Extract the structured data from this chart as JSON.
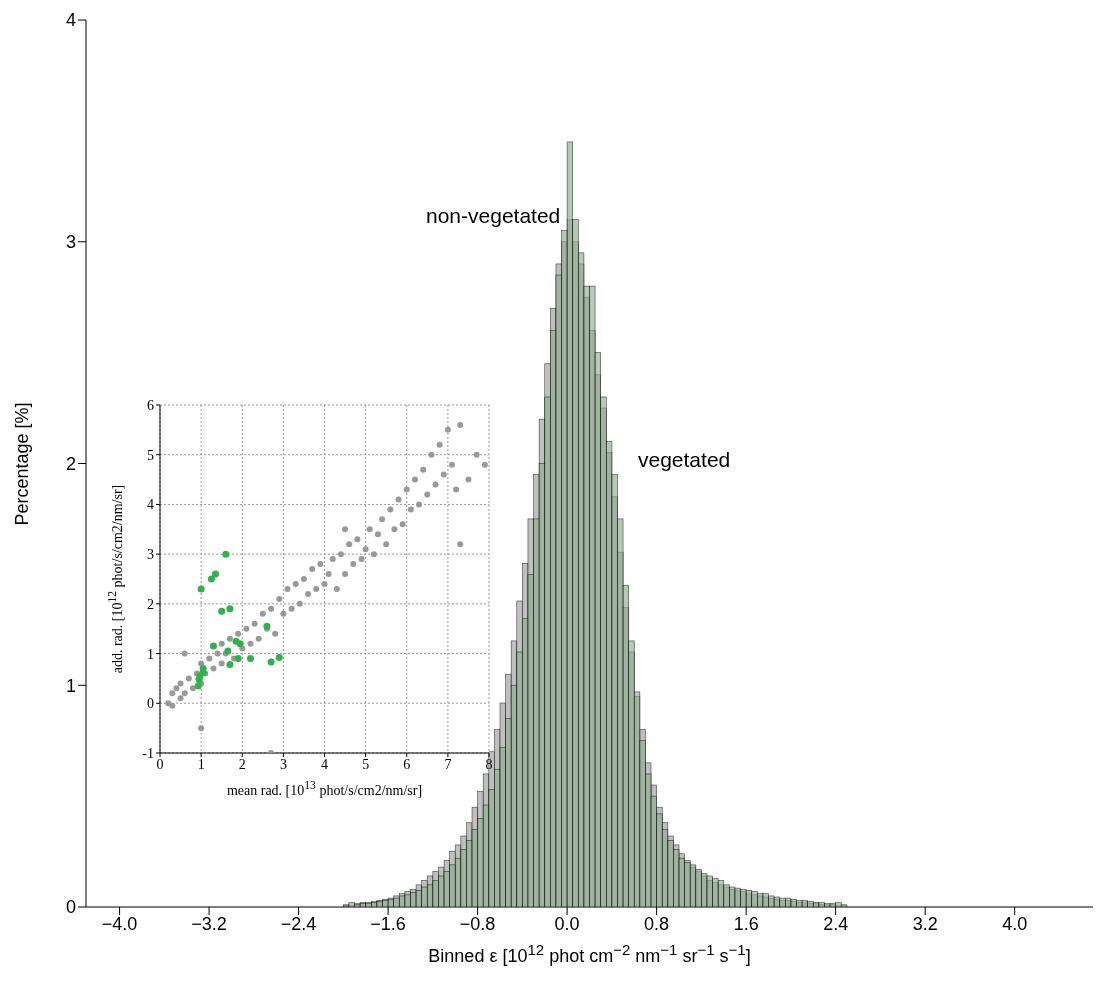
{
  "chart_data": [
    {
      "type": "histogram",
      "xlabel": "Binned ε [10$^{12}$ phot cm$^{−2}$ nm$^{−1}$ sr$^{−1}$ s$^{−1}$]",
      "ylabel": "Percentage [%]",
      "bins": [
        -2.0,
        -1.95,
        -1.9,
        -1.85,
        -1.8,
        -1.75,
        -1.7,
        -1.65,
        -1.6,
        -1.55,
        -1.5,
        -1.45,
        -1.4,
        -1.35,
        -1.3,
        -1.25,
        -1.2,
        -1.15,
        -1.1,
        -1.05,
        -1.0,
        -0.95,
        -0.9,
        -0.85,
        -0.8,
        -0.75,
        -0.7,
        -0.65,
        -0.6,
        -0.55,
        -0.5,
        -0.45,
        -0.4,
        -0.35,
        -0.3,
        -0.25,
        -0.2,
        -0.15,
        -0.1,
        -0.05,
        0.0,
        0.05,
        0.1,
        0.15,
        0.2,
        0.25,
        0.3,
        0.35,
        0.4,
        0.45,
        0.5,
        0.55,
        0.6,
        0.65,
        0.7,
        0.75,
        0.8,
        0.85,
        0.9,
        0.95,
        1.0,
        1.05,
        1.1,
        1.15,
        1.2,
        1.25,
        1.3,
        1.35,
        1.4,
        1.45,
        1.5,
        1.55,
        1.6,
        1.65,
        1.7,
        1.75,
        1.8,
        1.85,
        1.9,
        1.95,
        2.0,
        2.05,
        2.1,
        2.15,
        2.2,
        2.25,
        2.3,
        2.35,
        2.4,
        2.45,
        2.5
      ],
      "series": [
        {
          "name": "non-vegetated",
          "color": "#a9a9a9",
          "values": [
            0.01,
            0.005,
            0.015,
            0.02,
            0.02,
            0.025,
            0.03,
            0.035,
            0.04,
            0.05,
            0.06,
            0.07,
            0.08,
            0.1,
            0.12,
            0.14,
            0.16,
            0.18,
            0.21,
            0.25,
            0.28,
            0.32,
            0.38,
            0.45,
            0.52,
            0.6,
            0.7,
            0.8,
            0.92,
            1.05,
            1.2,
            1.38,
            1.55,
            1.75,
            1.95,
            2.2,
            2.45,
            2.7,
            2.9,
            3.0,
            3.1,
            3.0,
            2.9,
            2.75,
            2.6,
            2.4,
            2.25,
            2.05,
            1.85,
            1.6,
            1.35,
            1.15,
            0.95,
            0.8,
            0.65,
            0.55,
            0.45,
            0.38,
            0.32,
            0.28,
            0.24,
            0.21,
            0.18,
            0.16,
            0.14,
            0.12,
            0.11,
            0.1,
            0.09,
            0.08,
            0.075,
            0.07,
            0.06,
            0.055,
            0.05,
            0.045,
            0.04,
            0.035,
            0.03,
            0.03,
            0.025,
            0.02,
            0.02,
            0.015,
            0.015,
            0.01,
            0.01,
            0.01,
            0.005,
            0.005
          ]
        },
        {
          "name": "vegetated",
          "color": "#8faa8f",
          "values": [
            0.005,
            0.02,
            0.01,
            0.015,
            0.015,
            0.02,
            0.025,
            0.03,
            0.035,
            0.04,
            0.05,
            0.055,
            0.065,
            0.075,
            0.09,
            0.1,
            0.12,
            0.14,
            0.16,
            0.19,
            0.22,
            0.26,
            0.3,
            0.35,
            0.4,
            0.46,
            0.53,
            0.62,
            0.72,
            0.85,
            1.0,
            1.15,
            1.3,
            1.5,
            1.75,
            2.0,
            2.3,
            2.6,
            2.85,
            3.05,
            3.45,
            3.1,
            2.95,
            2.8,
            2.8,
            2.5,
            2.3,
            2.1,
            1.95,
            1.75,
            1.45,
            1.2,
            0.97,
            0.75,
            0.6,
            0.5,
            0.42,
            0.35,
            0.3,
            0.26,
            0.22,
            0.2,
            0.19,
            0.17,
            0.15,
            0.14,
            0.13,
            0.12,
            0.1,
            0.09,
            0.085,
            0.08,
            0.075,
            0.07,
            0.06,
            0.06,
            0.05,
            0.045,
            0.04,
            0.04,
            0.035,
            0.03,
            0.03,
            0.025,
            0.02,
            0.02,
            0.015,
            0.015,
            0.02,
            0.01
          ]
        }
      ],
      "xlim": [
        -4.3,
        4.7
      ],
      "xticks": [
        {
          "value": -4.0,
          "label": "−4.0"
        },
        {
          "value": -3.2,
          "label": "−3.2"
        },
        {
          "value": -2.4,
          "label": "−2.4"
        },
        {
          "value": -1.6,
          "label": "−1.6"
        },
        {
          "value": -0.8,
          "label": "−0.8"
        },
        {
          "value": 0,
          "label": "0.0"
        },
        {
          "value": 0.8,
          "label": "0.8"
        },
        {
          "value": 1.6,
          "label": "1.6"
        },
        {
          "value": 2.4,
          "label": "2.4"
        },
        {
          "value": 3.2,
          "label": "3.2"
        },
        {
          "value": 4.0,
          "label": "4.0"
        }
      ],
      "ylim": [
        0,
        4
      ],
      "yticks": [
        0,
        1,
        2,
        3,
        4
      ],
      "grid": false,
      "legend": false
    },
    {
      "type": "scatter",
      "xlabel": "mean rad. [10$^{13}$ phot/s/cm2/nm/sr]",
      "ylabel": "add. rad. [10$^{12}$ phot/s/cm2/nm/sr]",
      "series": [
        {
          "color": "#999999",
          "x": [
            0.2,
            0.3,
            0.3,
            0.4,
            0.5,
            0.5,
            0.6,
            0.7,
            0.8,
            0.9,
            1.0,
            1.0,
            1.1,
            1.2,
            1.3,
            1.4,
            1.5,
            1.5,
            1.6,
            1.7,
            1.8,
            1.9,
            2.0,
            2.1,
            2.2,
            2.3,
            2.4,
            2.5,
            2.6,
            2.7,
            2.8,
            2.9,
            3.0,
            3.1,
            3.2,
            3.3,
            3.4,
            3.5,
            3.6,
            3.7,
            3.8,
            3.9,
            4.0,
            4.1,
            4.2,
            4.3,
            4.4,
            4.5,
            4.6,
            4.7,
            4.8,
            4.9,
            5.0,
            5.1,
            5.2,
            5.3,
            5.4,
            5.5,
            5.6,
            5.7,
            5.8,
            5.9,
            6.0,
            6.1,
            6.2,
            6.3,
            6.4,
            6.5,
            6.6,
            6.7,
            6.8,
            6.9,
            7.0,
            7.1,
            7.2,
            7.3,
            7.5,
            7.7,
            7.9,
            2.7,
            1.0,
            0.6,
            4.5,
            7.3
          ],
          "values": [
            0.0,
            0.2,
            -0.05,
            0.3,
            0.1,
            0.4,
            0.2,
            0.5,
            0.3,
            0.6,
            0.4,
            0.8,
            0.6,
            0.9,
            0.7,
            1.0,
            0.8,
            1.2,
            1.0,
            1.3,
            0.9,
            1.4,
            1.1,
            1.5,
            1.2,
            1.6,
            1.3,
            1.8,
            1.5,
            1.9,
            1.4,
            2.1,
            1.8,
            2.3,
            1.9,
            2.4,
            2.0,
            2.5,
            2.2,
            2.7,
            2.3,
            2.8,
            2.4,
            2.6,
            2.9,
            2.3,
            3.0,
            2.6,
            3.2,
            2.8,
            3.3,
            2.9,
            3.1,
            3.5,
            3.0,
            3.4,
            3.7,
            3.2,
            3.9,
            3.5,
            4.1,
            3.6,
            4.3,
            3.9,
            4.5,
            4.0,
            4.7,
            4.2,
            5.0,
            4.4,
            5.2,
            4.6,
            5.5,
            4.8,
            4.3,
            5.6,
            4.5,
            5.0,
            4.8,
            -1.0,
            -0.5,
            1.0,
            3.5,
            3.2
          ]
        },
        {
          "color": "#2db34a",
          "x": [
            1.0,
            1.25,
            1.35,
            1.6,
            1.5,
            1.7,
            2.6,
            1.3,
            1.85,
            1.95,
            1.65,
            1.9,
            2.2,
            2.9,
            2.7,
            1.7,
            1.05,
            0.97,
            1.05,
            0.95,
            0.93
          ],
          "values": [
            2.3,
            2.5,
            2.6,
            3.0,
            1.85,
            1.9,
            1.55,
            1.15,
            1.25,
            1.2,
            1.05,
            0.9,
            0.9,
            0.92,
            0.83,
            0.78,
            0.7,
            0.55,
            0.62,
            0.48,
            0.35
          ]
        }
      ],
      "xlim": [
        0,
        8
      ],
      "xticks": [
        0,
        1,
        2,
        3,
        4,
        5,
        6,
        7,
        8
      ],
      "ylim": [
        -1,
        6
      ],
      "yticks": [
        -1,
        0,
        1,
        2,
        3,
        4,
        5,
        6
      ],
      "grid": true,
      "marker": "circle",
      "legend": false
    }
  ]
}
